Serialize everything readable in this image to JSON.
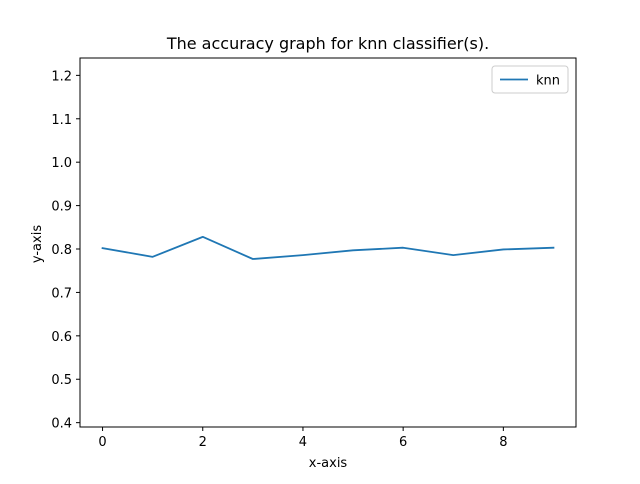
{
  "chart_data": {
    "type": "line",
    "title": "The accuracy graph for knn classifier(s).",
    "xlabel": "x-axis",
    "ylabel": "y-axis",
    "xlim": [
      -0.45,
      9.45
    ],
    "ylim": [
      0.39,
      1.24
    ],
    "x_ticks": [
      0,
      2,
      4,
      6,
      8
    ],
    "x_tick_labels": [
      "0",
      "2",
      "4",
      "6",
      "8"
    ],
    "y_ticks": [
      0.4,
      0.5,
      0.6,
      0.7,
      0.8,
      0.9,
      1.0,
      1.1,
      1.2
    ],
    "y_tick_labels": [
      "0.4",
      "0.5",
      "0.6",
      "0.7",
      "0.8",
      "0.9",
      "1.0",
      "1.1",
      "1.2"
    ],
    "grid": false,
    "legend_position": "top-right",
    "series": [
      {
        "name": "knn",
        "color": "#1f77b4",
        "x": [
          0,
          1,
          2,
          3,
          4,
          5,
          6,
          7,
          8,
          9
        ],
        "y": [
          0.802,
          0.782,
          0.828,
          0.777,
          0.786,
          0.797,
          0.803,
          0.786,
          0.799,
          0.803
        ]
      }
    ]
  }
}
